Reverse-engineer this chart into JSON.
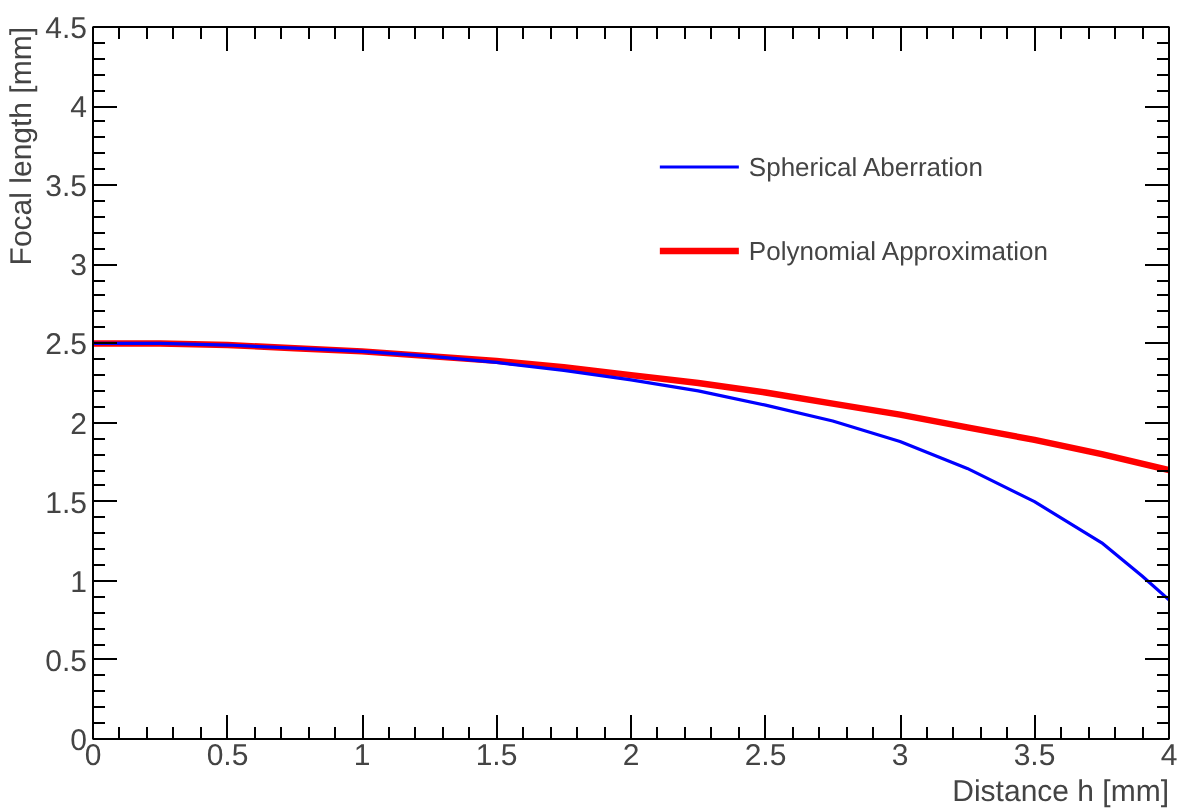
{
  "chart_data": {
    "type": "line",
    "xlabel": "Distance h [mm]",
    "ylabel": "Focal length [mm]",
    "xlim": [
      0,
      4
    ],
    "ylim": [
      0,
      4.5
    ],
    "xticks": [
      0,
      0.5,
      1,
      1.5,
      2,
      2.5,
      3,
      3.5,
      4
    ],
    "yticks": [
      0,
      0.5,
      1,
      1.5,
      2,
      2.5,
      3,
      3.5,
      4,
      4.5
    ],
    "grid": false,
    "legend": "top right",
    "line_style": "solid",
    "marker": "none",
    "series": [
      {
        "name": "Spherical Aberration",
        "color": "#0000ff",
        "x": [
          0,
          0.25,
          0.5,
          0.75,
          1,
          1.25,
          1.5,
          1.75,
          2,
          2.25,
          2.5,
          2.75,
          3,
          3.25,
          3.5,
          3.75,
          3.9,
          4
        ],
        "values": [
          2.5,
          2.5,
          2.49,
          2.47,
          2.45,
          2.42,
          2.38,
          2.33,
          2.27,
          2.2,
          2.11,
          2.01,
          1.88,
          1.71,
          1.5,
          1.24,
          1.03,
          0.88
        ]
      },
      {
        "name": "Polynomial Approximation",
        "color": "#ff0000",
        "x": [
          0,
          0.25,
          0.5,
          0.75,
          1,
          1.25,
          1.5,
          1.75,
          2,
          2.25,
          2.5,
          2.75,
          3,
          3.25,
          3.5,
          3.75,
          4
        ],
        "values": [
          2.5,
          2.5,
          2.49,
          2.47,
          2.45,
          2.42,
          2.39,
          2.35,
          2.3,
          2.25,
          2.19,
          2.12,
          2.05,
          1.97,
          1.89,
          1.8,
          1.7
        ]
      }
    ]
  }
}
